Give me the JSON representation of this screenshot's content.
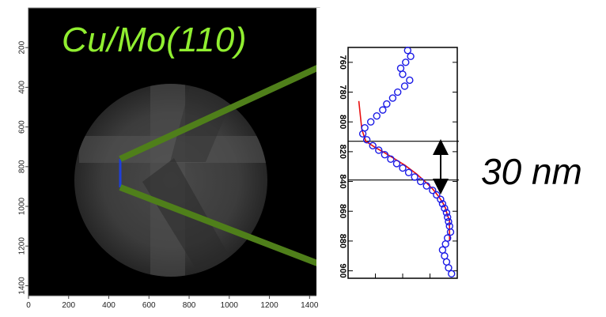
{
  "image_title": "Cu/Mo(110)",
  "scale_text": "30 nm",
  "image_axes": {
    "x_ticks": [
      "0",
      "200",
      "400",
      "600",
      "800",
      "1000",
      "1200",
      "1400"
    ],
    "y_ticks": [
      "200",
      "400",
      "600",
      "800",
      "1000",
      "1200",
      "1400"
    ]
  },
  "profile_y_ticks": [
    "760",
    "780",
    "800",
    "820",
    "840",
    "860",
    "880",
    "900"
  ],
  "colors": {
    "title": "#90ee30",
    "zoom_lines": "#4f7f1a",
    "marker": "#1f3fd8",
    "profile_points": "#1a1ae6",
    "profile_fit": "#e81010"
  },
  "chart_data": {
    "type": "scatter",
    "ylim": [
      750,
      905
    ],
    "xlim": [
      0,
      1
    ],
    "y_inverted": true,
    "series": [
      {
        "style": "circles",
        "points": [
          [
            0.55,
            752
          ],
          [
            0.58,
            756
          ],
          [
            0.53,
            760
          ],
          [
            0.48,
            764
          ],
          [
            0.5,
            768
          ],
          [
            0.57,
            772
          ],
          [
            0.52,
            776
          ],
          [
            0.45,
            780
          ],
          [
            0.4,
            784
          ],
          [
            0.34,
            788
          ],
          [
            0.3,
            792
          ],
          [
            0.24,
            796
          ],
          [
            0.18,
            800
          ],
          [
            0.12,
            804
          ],
          [
            0.1,
            808
          ],
          [
            0.14,
            812
          ],
          [
            0.2,
            816
          ],
          [
            0.26,
            819
          ],
          [
            0.32,
            822
          ],
          [
            0.38,
            825
          ],
          [
            0.44,
            828
          ],
          [
            0.5,
            831
          ],
          [
            0.56,
            834
          ],
          [
            0.62,
            837
          ],
          [
            0.68,
            840
          ],
          [
            0.74,
            843
          ],
          [
            0.8,
            846
          ],
          [
            0.84,
            849
          ],
          [
            0.88,
            852
          ],
          [
            0.9,
            855
          ],
          [
            0.92,
            858
          ],
          [
            0.94,
            861
          ],
          [
            0.95,
            864
          ],
          [
            0.96,
            867
          ],
          [
            0.97,
            870
          ],
          [
            0.98,
            874
          ],
          [
            0.95,
            878
          ],
          [
            0.93,
            882
          ],
          [
            0.9,
            886
          ],
          [
            0.92,
            890
          ],
          [
            0.94,
            894
          ],
          [
            0.96,
            898
          ],
          [
            0.99,
            902
          ]
        ]
      },
      {
        "style": "line",
        "points": [
          [
            0.06,
            786
          ],
          [
            0.09,
            805
          ],
          [
            0.13,
            813
          ],
          [
            0.22,
            817
          ],
          [
            0.3,
            820
          ],
          [
            0.4,
            824
          ],
          [
            0.52,
            829
          ],
          [
            0.64,
            835
          ],
          [
            0.74,
            841
          ],
          [
            0.8,
            845
          ],
          [
            0.86,
            850
          ],
          [
            0.9,
            854
          ],
          [
            0.93,
            858
          ],
          [
            0.95,
            863
          ],
          [
            0.97,
            866
          ],
          [
            0.97,
            880
          ]
        ]
      }
    ],
    "reference_lines_y": [
      813,
      839
    ]
  }
}
